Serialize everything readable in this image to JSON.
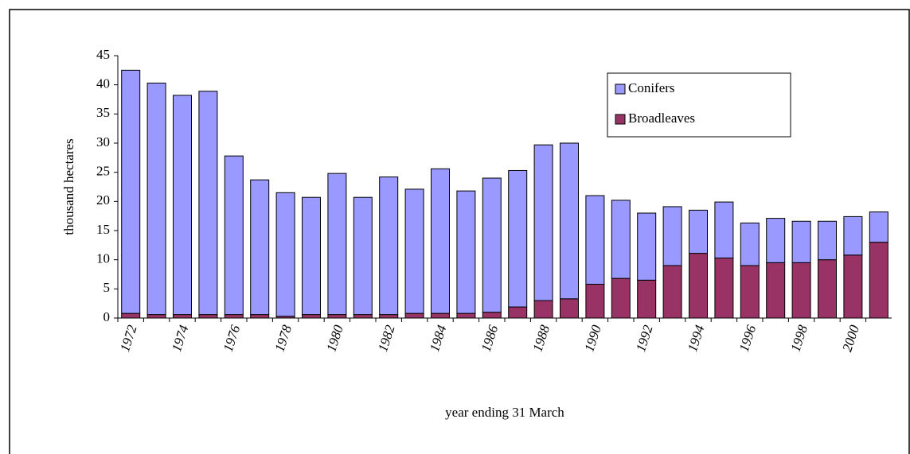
{
  "chart_data": {
    "type": "stacked-bar",
    "y_label": "thousand hectares",
    "x_label": "year ending 31 March",
    "categories": [
      "1972",
      null,
      "1974",
      null,
      "1976",
      null,
      "1978",
      null,
      "1980",
      null,
      "1982",
      null,
      "1984",
      null,
      "1986",
      null,
      "1988",
      null,
      "1990",
      null,
      "1992",
      null,
      "1994",
      null,
      "1996",
      null,
      "1998",
      null,
      "2000",
      null
    ],
    "series": [
      {
        "name": "Conifers",
        "color": "#9999ff",
        "values": [
          41.7,
          39.7,
          37.6,
          38.3,
          27.2,
          23.1,
          21.2,
          20.1,
          24.2,
          20.1,
          23.6,
          21.3,
          24.8,
          21.0,
          23.0,
          23.4,
          26.7,
          26.7,
          15.2,
          13.4,
          11.5,
          10.1,
          7.4,
          9.6,
          7.3,
          7.6,
          7.1,
          6.6,
          6.6,
          5.2
        ]
      },
      {
        "name": "Broadleaves",
        "color": "#993366",
        "values": [
          0.8,
          0.6,
          0.6,
          0.6,
          0.6,
          0.6,
          0.3,
          0.6,
          0.6,
          0.6,
          0.6,
          0.8,
          0.8,
          0.8,
          1.0,
          1.9,
          3.0,
          3.3,
          5.8,
          6.8,
          6.5,
          9.0,
          11.1,
          10.3,
          9.0,
          9.5,
          9.5,
          10.0,
          10.8,
          13.0
        ]
      }
    ],
    "ylim": [
      0,
      45
    ],
    "yticks": [
      0,
      5,
      10,
      15,
      20,
      25,
      30,
      35,
      40,
      45
    ],
    "grid": false,
    "legend": "top-right"
  }
}
